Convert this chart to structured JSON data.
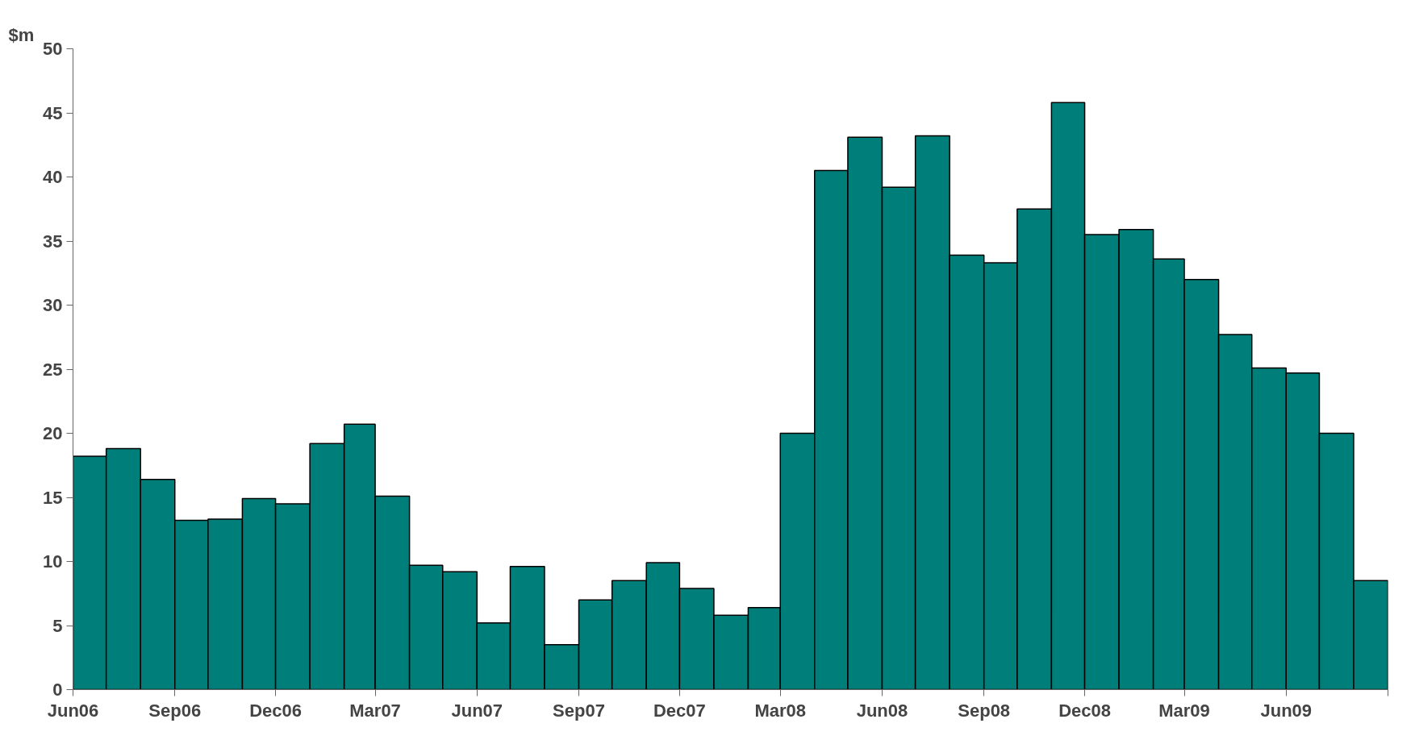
{
  "chart_data": {
    "type": "bar",
    "ylabel": "$m",
    "color": "#007f7a",
    "x": [
      "2006-06-16",
      "2006-07-16",
      "2006-08-16",
      "2006-09-16",
      "2006-10-16",
      "2006-11-16",
      "2006-12-16",
      "2007-01-16",
      "2007-02-15",
      "2007-03-16",
      "2007-04-16",
      "2007-05-16",
      "2007-06-16",
      "2007-07-16",
      "2007-08-16",
      "2007-09-16",
      "2007-10-16",
      "2007-11-16",
      "2007-12-16",
      "2008-01-16",
      "2008-02-15",
      "2008-03-16",
      "2008-04-16",
      "2008-05-16",
      "2008-06-16",
      "2008-07-16",
      "2008-08-16",
      "2008-09-16",
      "2008-10-16",
      "2008-11-16",
      "2008-12-16",
      "2009-01-16",
      "2009-02-15",
      "2009-03-16",
      "2009-04-16",
      "2009-05-16",
      "2009-06-16",
      "2009-07-16",
      "2009-08-16"
    ],
    "values": [
      18.2,
      18.8,
      16.4,
      13.2,
      13.3,
      14.9,
      14.5,
      19.2,
      20.7,
      15.1,
      9.7,
      9.2,
      5.2,
      9.6,
      3.5,
      7.0,
      8.5,
      9.9,
      7.9,
      5.8,
      6.4,
      20.0,
      40.5,
      43.1,
      39.2,
      43.2,
      33.9,
      33.3,
      37.5,
      45.8,
      35.5,
      35.9,
      33.6,
      32.0,
      27.7,
      25.1,
      24.7,
      20.0,
      8.5
    ],
    "xlim": [
      "2006-06",
      "2009-09"
    ],
    "xticks": [
      {
        "value": "2006-06",
        "label": "Jun06"
      },
      {
        "value": "2006-09",
        "label": "Sep06"
      },
      {
        "value": "2006-12",
        "label": "Dec06"
      },
      {
        "value": "2007-03",
        "label": "Mar07"
      },
      {
        "value": "2007-06",
        "label": "Jun07"
      },
      {
        "value": "2007-09",
        "label": "Sep07"
      },
      {
        "value": "2007-12",
        "label": "Dec07"
      },
      {
        "value": "2008-03",
        "label": "Mar08"
      },
      {
        "value": "2008-06",
        "label": "Jun08"
      },
      {
        "value": "2008-09",
        "label": "Sep08"
      },
      {
        "value": "2008-12",
        "label": "Dec08"
      },
      {
        "value": "2009-03",
        "label": "Mar09"
      },
      {
        "value": "2009-06",
        "label": "Jun09"
      },
      {
        "value": "2009-09",
        "label": null
      }
    ],
    "ylim": [
      0,
      50
    ],
    "yticks": [
      0,
      5,
      10,
      15,
      20,
      25,
      30,
      35,
      40,
      45,
      50
    ],
    "grid": false
  }
}
